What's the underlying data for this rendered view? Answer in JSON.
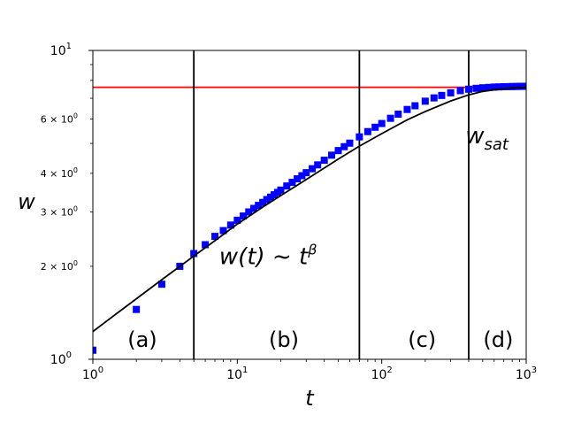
{
  "chart_data": {
    "type": "scatter",
    "xlabel": "t",
    "ylabel": "w",
    "x_scale": "log",
    "y_scale": "log",
    "xlim": [
      1,
      1000
    ],
    "ylim": [
      1,
      10
    ],
    "x_ticks": [
      {
        "value": 1,
        "base": "10",
        "exp": "0"
      },
      {
        "value": 10,
        "base": "10",
        "exp": "1"
      },
      {
        "value": 100,
        "base": "10",
        "exp": "2"
      },
      {
        "value": 1000,
        "base": "10",
        "exp": "3"
      }
    ],
    "y_major_ticks": [
      {
        "value": 1,
        "base": "10",
        "exp": "0"
      },
      {
        "value": 10,
        "base": "10",
        "exp": "1"
      }
    ],
    "y_minor_ticks": [
      {
        "value": 2,
        "mant": "2",
        "base": "10",
        "exp": "0"
      },
      {
        "value": 3,
        "mant": "3",
        "base": "10",
        "exp": "0"
      },
      {
        "value": 4,
        "mant": "4",
        "base": "10",
        "exp": "0"
      },
      {
        "value": 6,
        "mant": "6",
        "base": "10",
        "exp": "0"
      }
    ],
    "series": [
      {
        "kind": "markers",
        "marker": "square",
        "color": "#0000ff",
        "x": [
          1,
          2,
          3,
          4,
          5,
          6,
          7,
          8,
          9,
          10,
          11,
          12,
          13,
          14,
          15,
          16,
          17,
          18,
          19,
          20,
          22,
          24,
          26,
          28,
          30,
          33,
          36,
          40,
          45,
          50,
          55,
          60,
          70,
          80,
          90,
          100,
          115,
          130,
          150,
          170,
          200,
          230,
          260,
          300,
          350,
          400,
          450,
          500,
          550,
          600,
          650,
          700,
          750,
          800,
          850,
          900,
          950,
          1000
        ],
        "y": [
          1.07,
          1.45,
          1.75,
          2.0,
          2.2,
          2.35,
          2.5,
          2.61,
          2.72,
          2.82,
          2.91,
          3.0,
          3.08,
          3.15,
          3.22,
          3.29,
          3.35,
          3.41,
          3.47,
          3.53,
          3.64,
          3.74,
          3.84,
          3.93,
          4.02,
          4.14,
          4.26,
          4.41,
          4.58,
          4.74,
          4.88,
          5.01,
          5.25,
          5.46,
          5.64,
          5.8,
          6.03,
          6.22,
          6.44,
          6.62,
          6.85,
          7.02,
          7.15,
          7.29,
          7.41,
          7.49,
          7.54,
          7.57,
          7.59,
          7.61,
          7.62,
          7.63,
          7.635,
          7.64,
          7.645,
          7.65,
          7.652,
          7.655
        ]
      },
      {
        "kind": "line",
        "color": "#000000",
        "x": [
          1,
          2,
          3,
          5,
          7,
          10,
          15,
          20,
          30,
          50,
          70,
          100,
          150,
          200,
          300,
          400,
          500,
          700,
          1000
        ],
        "y": [
          1.23,
          1.57,
          1.81,
          2.16,
          2.42,
          2.74,
          3.11,
          3.39,
          3.82,
          4.45,
          4.9,
          5.38,
          5.96,
          6.34,
          6.86,
          7.18,
          7.37,
          7.53,
          7.6
        ]
      },
      {
        "kind": "hline",
        "color": "#ff0000",
        "y": 7.6
      }
    ],
    "vlines": [
      5,
      70,
      400
    ],
    "region_labels": [
      {
        "text": "(a)",
        "x": 2.2
      },
      {
        "text": "(b)",
        "x": 21
      },
      {
        "text": "(c)",
        "x": 190
      },
      {
        "text": "(d)",
        "x": 640
      }
    ],
    "annotations": [
      {
        "id": "power_law",
        "text_main": "w(t) ~ t",
        "text_sup": "β",
        "x": 7.5,
        "y": 2.03
      },
      {
        "id": "saturation",
        "text_main": "w",
        "text_sub": "sat",
        "x": 390,
        "y": 5.0
      }
    ]
  }
}
